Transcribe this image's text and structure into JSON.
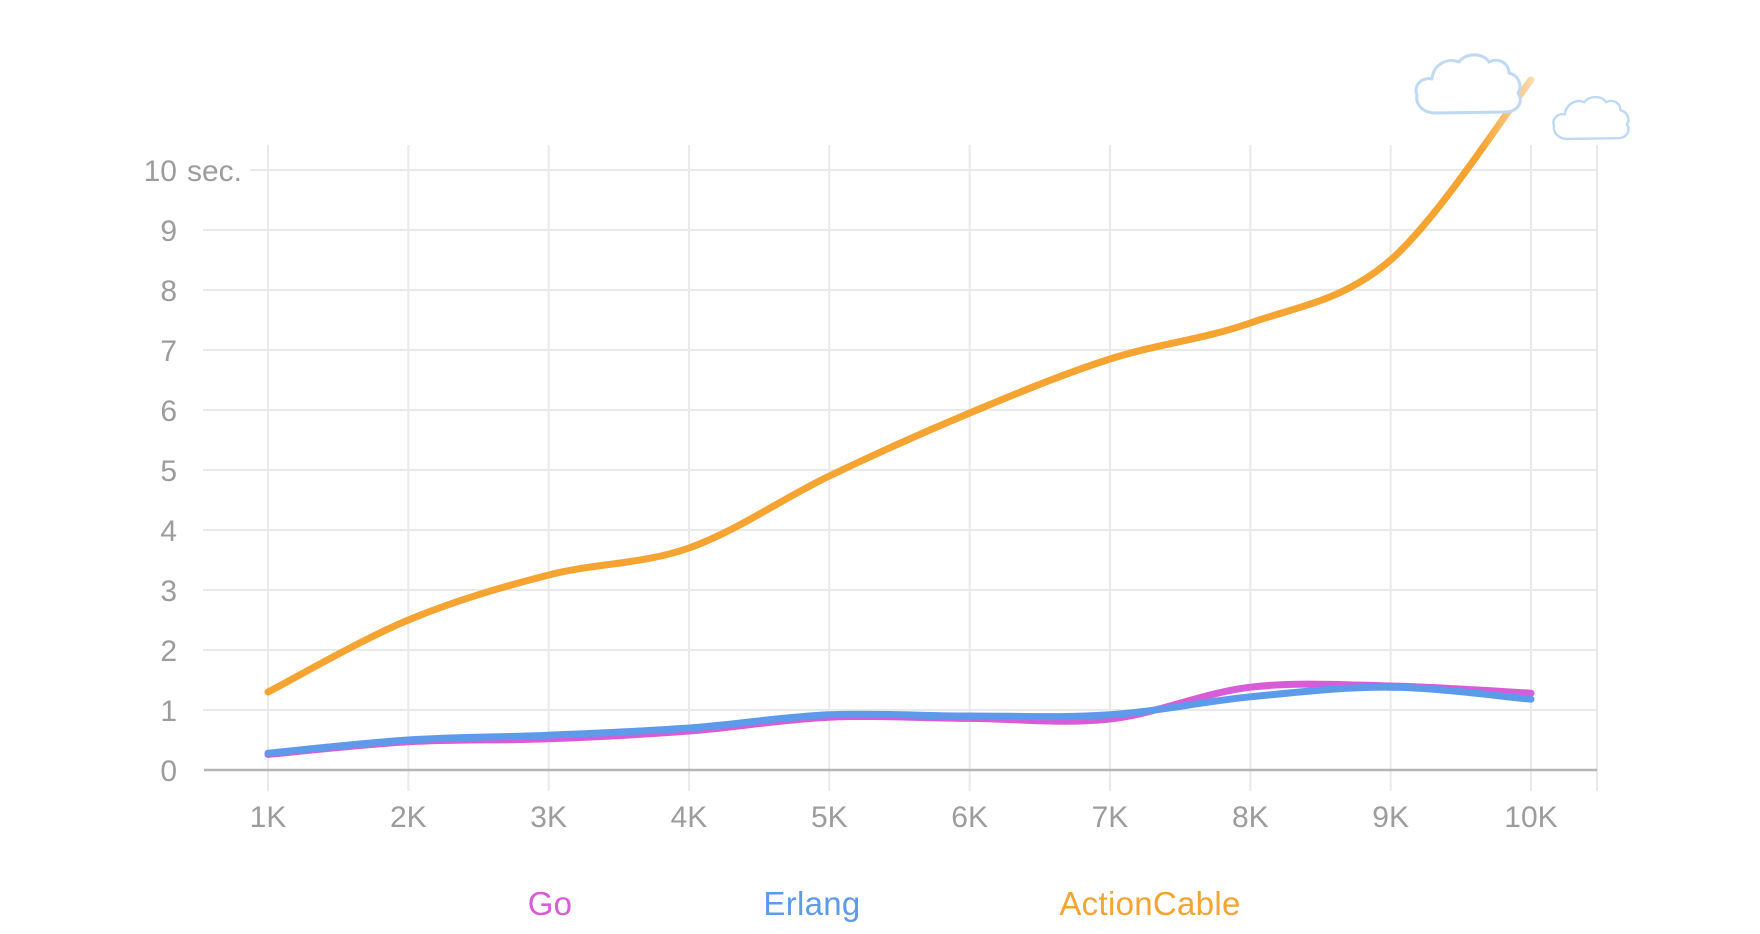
{
  "chart_data": {
    "type": "line",
    "title": "",
    "x_tick_labels": [
      "1K",
      "2K",
      "3K",
      "4K",
      "5K",
      "6K",
      "7K",
      "8K",
      "9K",
      "10K"
    ],
    "y_tick_labels": [
      "0",
      "1",
      "2",
      "3",
      "4",
      "5",
      "6",
      "7",
      "8",
      "9",
      "10"
    ],
    "y_unit_suffix": "sec.",
    "ylim": [
      0,
      10
    ],
    "grid": true,
    "legend_position": "bottom",
    "series": [
      {
        "name": "Go",
        "color": "#D85BD8",
        "z": 1,
        "values": [
          0.26,
          0.47,
          0.52,
          0.65,
          0.88,
          0.86,
          0.85,
          1.38,
          1.4,
          1.28
        ]
      },
      {
        "name": "Erlang",
        "color": "#5D9BEA",
        "z": 2,
        "values": [
          0.28,
          0.5,
          0.58,
          0.7,
          0.92,
          0.9,
          0.92,
          1.22,
          1.38,
          1.18
        ]
      },
      {
        "name": "ActionCable",
        "color": "#F6A431",
        "z": 0,
        "fade_tip": true,
        "values": [
          1.3,
          2.5,
          3.25,
          3.7,
          4.9,
          5.95,
          6.85,
          7.45,
          8.5,
          11.5
        ]
      }
    ],
    "colors": {
      "grid_line": "#E9E9E9",
      "zero_axis_line": "#B5B5B5",
      "tick_label_text": "#9C9C9C",
      "cloud_outline": "#BFD9F4",
      "cloud_fill": "#FFFFFF"
    }
  }
}
